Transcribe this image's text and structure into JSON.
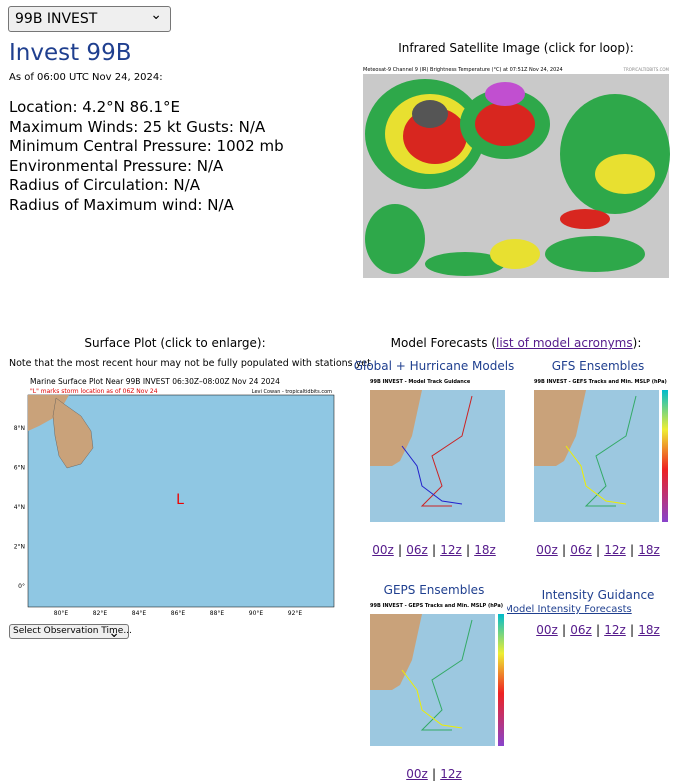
{
  "storm_select": "99B INVEST",
  "header": {
    "title": "Invest 99B",
    "as_of": "As of 06:00 UTC Nov 24, 2024:"
  },
  "details": [
    "Location: 4.2°N 86.1°E",
    "Maximum Winds: 25 kt  Gusts: N/A",
    "Minimum Central Pressure: 1002 mb",
    "Environmental Pressure: N/A",
    "Radius of Circulation: N/A",
    "Radius of Maximum wind: N/A"
  ],
  "satellite": {
    "heading": "Infrared Satellite Image (click for loop):",
    "image_title": "Meteosat-9 Channel 9 (IR) Brightness Temperature (°C) at 07:51Z Nov 24, 2024",
    "credit": "TROPICALTIDBITS.COM"
  },
  "surface": {
    "heading": "Surface Plot (click to enlarge):",
    "note": "Note that the most recent hour may not be fully populated with stations yet.",
    "image_title": "Marine Surface Plot Near 99B INVEST 06:30Z–08:00Z Nov 24 2024",
    "image_subtitle": "\"L\" marks storm location as of 06Z Nov 24",
    "credit": "Levi Cowan - tropicaltidbits.com",
    "storm_marker": "L",
    "lat_labels": [
      "8°N",
      "6°N",
      "4°N",
      "2°N",
      "0°"
    ],
    "lon_labels": [
      "80°E",
      "82°E",
      "84°E",
      "86°E",
      "88°E",
      "90°E",
      "92°E"
    ],
    "select": "Select Observation Time..."
  },
  "models": {
    "heading_before": "Model Forecasts (",
    "heading_link": "list of model acronyms",
    "heading_after": "):",
    "separator": "|",
    "panels": [
      {
        "title": "Global + Hurricane Models",
        "image_title": "99B INVEST - Model Track Guidance",
        "links": [
          "00z",
          "06z",
          "12z",
          "18z"
        ]
      },
      {
        "title": "GFS Ensembles",
        "image_title": "99B INVEST - GEFS Tracks and Min. MSLP (hPa)",
        "links": [
          "00z",
          "06z",
          "12z",
          "18z"
        ]
      },
      {
        "title": "GEPS Ensembles",
        "image_title": "99B INVEST - GEPS Tracks and Min. MSLP (hPa)",
        "links": [
          "00z",
          "12z"
        ]
      }
    ],
    "intensity": {
      "title": "Intensity Guidance",
      "link": "Model Intensity Forecasts",
      "links": [
        "00z",
        "06z",
        "12z",
        "18z"
      ]
    }
  }
}
